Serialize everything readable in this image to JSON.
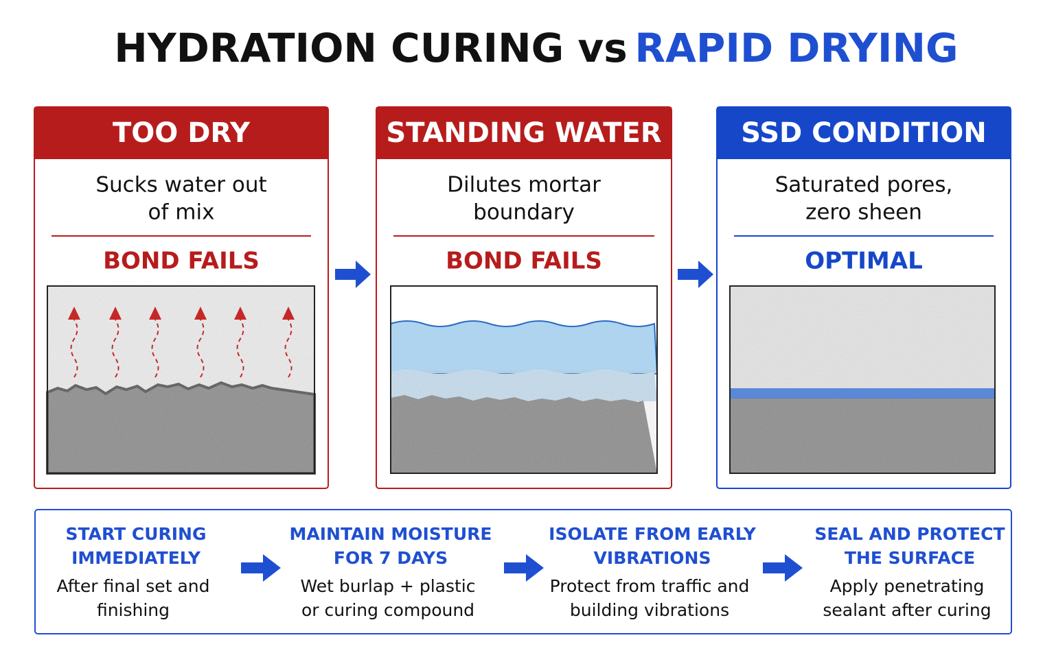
{
  "title": {
    "part1": "HYDRATION CURING vs",
    "part2": "RAPID DRYING"
  },
  "panels": [
    {
      "header": "TOO DRY",
      "description": [
        "Sucks water out",
        "of mix"
      ],
      "result": "BOND FAILS"
    },
    {
      "header": "STANDING WATER",
      "description": [
        "Dilutes mortar",
        "boundary"
      ],
      "result": "BOND FAILS"
    },
    {
      "header": "SSD CONDITION",
      "description": [
        "Saturated pores,",
        "zero sheen"
      ],
      "result": "OPTIMAL"
    }
  ],
  "steps": [
    {
      "title": [
        "START CURING",
        "IMMEDIATELY"
      ],
      "description": [
        "After final set and",
        "finishing"
      ]
    },
    {
      "title": [
        "MAINTAIN MOISTURE",
        "FOR 7 DAYS"
      ],
      "description": [
        "Wet burlap + plastic",
        "or curing compound"
      ]
    },
    {
      "title": [
        "ISOLATE FROM EARLY",
        "VIBRATIONS"
      ],
      "description": [
        "Protect from traffic and",
        "building vibrations"
      ]
    },
    {
      "title": [
        "SEAL AND PROTECT",
        "THE SURFACE"
      ],
      "description": [
        "Apply penetrating",
        "sealant after curing"
      ]
    }
  ]
}
